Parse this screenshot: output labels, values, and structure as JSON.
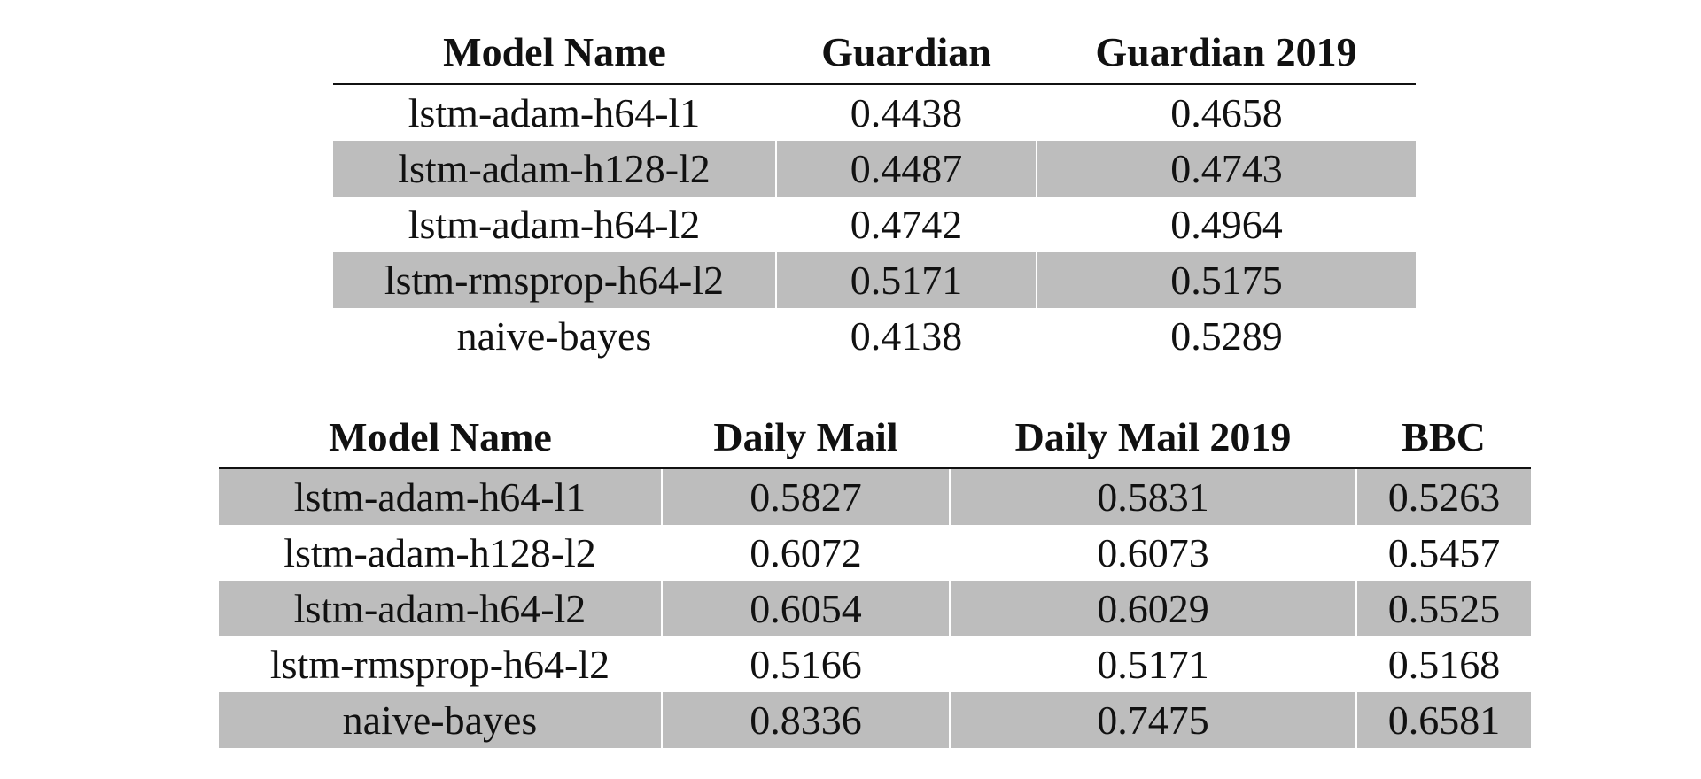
{
  "table1": {
    "headers": [
      "Model Name",
      "Guardian",
      "Guardian 2019"
    ],
    "rows": [
      [
        "lstm-adam-h64-l1",
        "0.4438",
        "0.4658"
      ],
      [
        "lstm-adam-h128-l2",
        "0.4487",
        "0.4743"
      ],
      [
        "lstm-adam-h64-l2",
        "0.4742",
        "0.4964"
      ],
      [
        "lstm-rmsprop-h64-l2",
        "0.5171",
        "0.5175"
      ],
      [
        "naive-bayes",
        "0.4138",
        "0.5289"
      ]
    ]
  },
  "table2": {
    "headers": [
      "Model Name",
      "Daily Mail",
      "Daily Mail 2019",
      "BBC"
    ],
    "rows": [
      [
        "lstm-adam-h64-l1",
        "0.5827",
        "0.5831",
        "0.5263"
      ],
      [
        "lstm-adam-h128-l2",
        "0.6072",
        "0.6073",
        "0.5457"
      ],
      [
        "lstm-adam-h64-l2",
        "0.6054",
        "0.6029",
        "0.5525"
      ],
      [
        "lstm-rmsprop-h64-l2",
        "0.5166",
        "0.5171",
        "0.5168"
      ],
      [
        "naive-bayes",
        "0.8336",
        "0.7475",
        "0.6581"
      ]
    ]
  }
}
